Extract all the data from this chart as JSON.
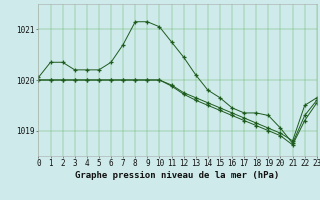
{
  "title": "Graphe pression niveau de la mer (hPa)",
  "bg_color": "#ceeaea",
  "grid_color": "#5aaa5a",
  "line_color": "#1e5c1e",
  "marker": "+",
  "series1": [
    1020.05,
    1020.35,
    1020.35,
    1020.2,
    1020.2,
    1020.2,
    1020.35,
    1020.7,
    1021.15,
    1021.15,
    1021.05,
    1020.75,
    1020.45,
    1020.1,
    1019.8,
    1019.65,
    1019.45,
    1019.35,
    1019.35,
    1019.3,
    1019.05,
    1018.75,
    1019.3,
    1019.6
  ],
  "series2": [
    1020.0,
    1020.0,
    1020.0,
    1020.0,
    1020.0,
    1020.0,
    1020.0,
    1020.0,
    1020.0,
    1020.0,
    1020.0,
    1019.9,
    1019.75,
    1019.65,
    1019.55,
    1019.45,
    1019.35,
    1019.25,
    1019.15,
    1019.05,
    1018.95,
    1018.8,
    1019.5,
    1019.65
  ],
  "series3": [
    1020.0,
    1020.0,
    1020.0,
    1020.0,
    1020.0,
    1020.0,
    1020.0,
    1020.0,
    1020.0,
    1020.0,
    1020.0,
    1019.88,
    1019.72,
    1019.6,
    1019.5,
    1019.4,
    1019.3,
    1019.2,
    1019.1,
    1019.0,
    1018.9,
    1018.72,
    1019.2,
    1019.55
  ],
  "xlim": [
    0,
    23
  ],
  "ylim": [
    1018.5,
    1021.5
  ],
  "yticks": [
    1019,
    1020,
    1021
  ],
  "xticks": [
    0,
    1,
    2,
    3,
    4,
    5,
    6,
    7,
    8,
    9,
    10,
    11,
    12,
    13,
    14,
    15,
    16,
    17,
    18,
    19,
    20,
    21,
    22,
    23
  ],
  "tick_fontsize": 5.5,
  "title_fontsize": 6.5,
  "marker_size": 3.5,
  "line_width": 0.7
}
